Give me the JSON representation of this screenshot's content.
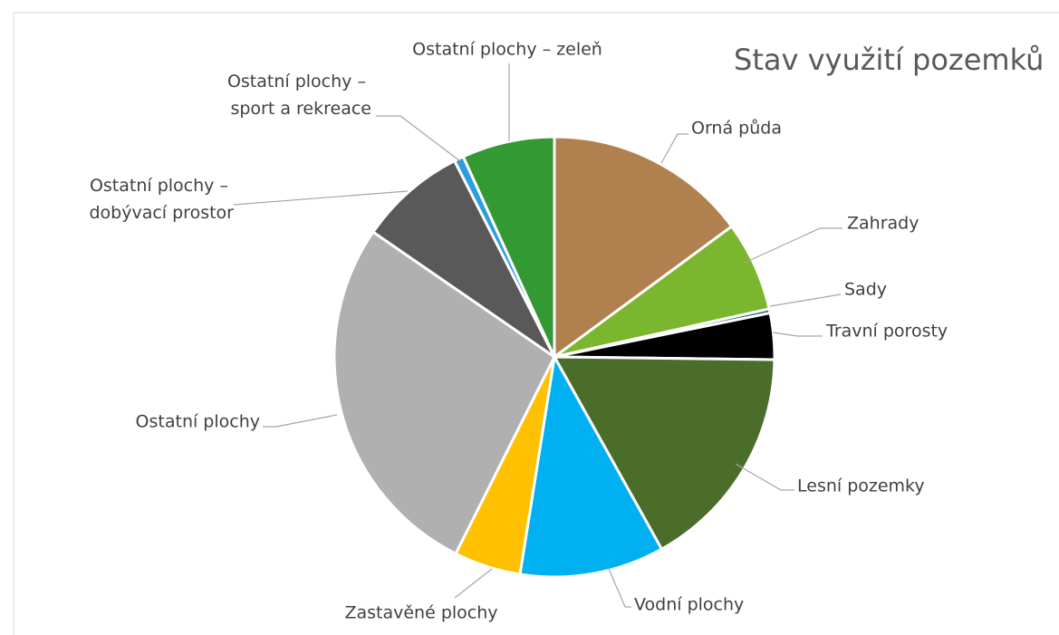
{
  "chart_data": {
    "type": "pie",
    "title": "Stav využití pozemků",
    "categories": [
      "Orná půda",
      "Zahrady",
      "Sady",
      "Travní porosty",
      "Lesní pozemky",
      "Vodní plochy",
      "Zastavěné plochy",
      "Ostatní plochy",
      "Ostatní plochy – dobývací prostor",
      "Ostatní plochy – sport a rekreace",
      "Ostatní plochy – zeleň"
    ],
    "values": [
      14.9,
      6.6,
      0.3,
      3.4,
      16.7,
      10.6,
      4.9,
      27.2,
      7.9,
      0.7,
      6.8
    ],
    "colors": [
      "#b0814f",
      "#7ab62e",
      "#264478",
      "#000000",
      "#4a6e2a",
      "#00b0f0",
      "#ffc000",
      "#b0b0b0",
      "#595959",
      "#2e9de0",
      "#339933"
    ]
  }
}
